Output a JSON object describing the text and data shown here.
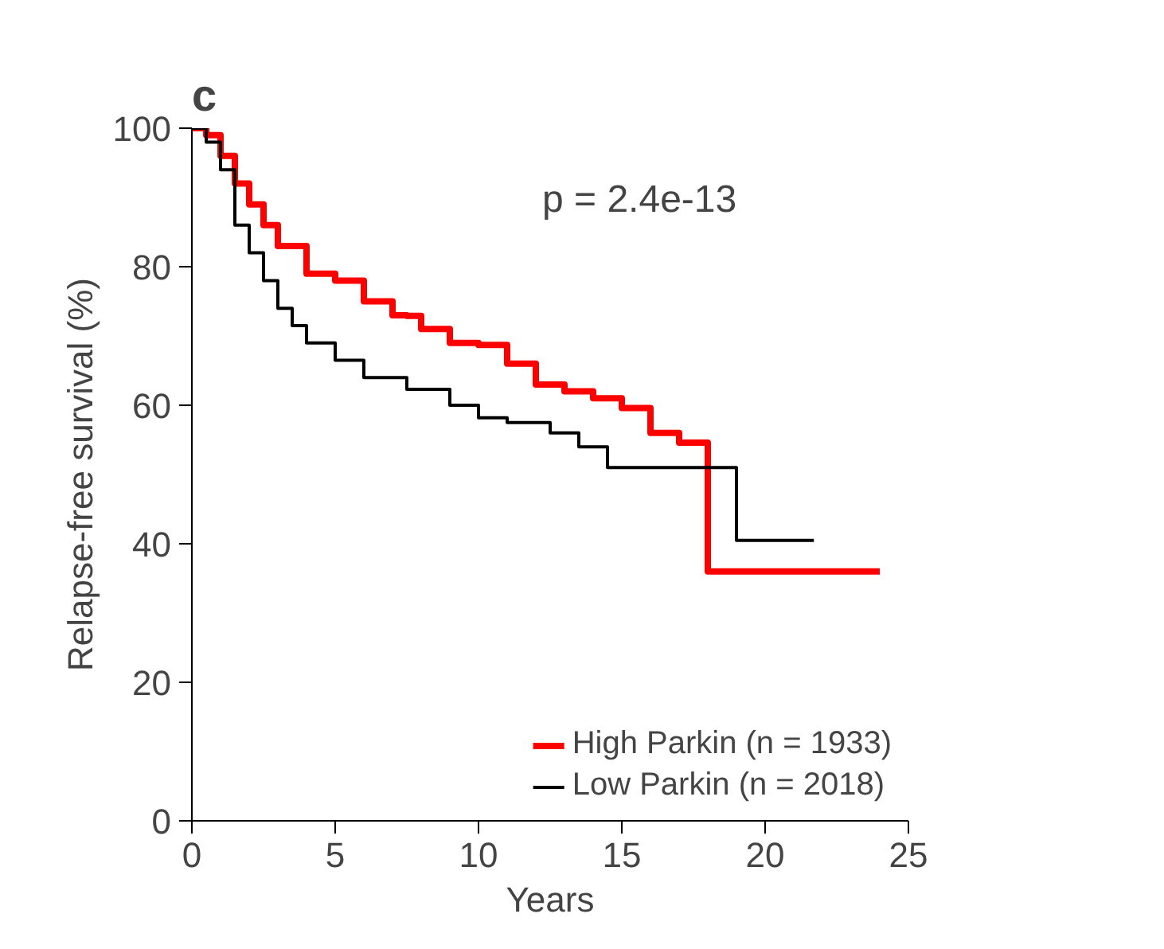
{
  "chart_data": {
    "type": "step",
    "title": "c",
    "xlabel": "Years",
    "ylabel": "Relapse-free survival (%)",
    "xlim": [
      0,
      25
    ],
    "ylim": [
      0,
      100
    ],
    "xticks": [
      0,
      5,
      10,
      15,
      20,
      25
    ],
    "yticks": [
      0,
      20,
      40,
      60,
      80,
      100
    ],
    "grid": false,
    "legend": "bottom right",
    "line_style": "solid",
    "annotations": [
      "p = 2.4e-13"
    ],
    "series": [
      {
        "name": "High Parkin (n = 1933)",
        "color": "#ff0000",
        "x": [
          0,
          0.5,
          1,
          1.5,
          2,
          2.5,
          3,
          4,
          5,
          6,
          7,
          7.5,
          8,
          9,
          10,
          11,
          12,
          13,
          14,
          15,
          16,
          17,
          18,
          18,
          24
        ],
        "values": [
          100,
          99,
          96,
          92,
          89,
          86,
          83,
          79,
          78,
          75,
          73,
          72.9,
          71,
          69,
          68.7,
          66,
          63,
          62,
          61,
          59.6,
          56,
          54.6,
          54,
          36,
          36
        ]
      },
      {
        "name": "Low Parkin (n = 2018)",
        "color": "#000000",
        "x": [
          0,
          0.5,
          1,
          1.5,
          2,
          2.5,
          3,
          3.5,
          4,
          5,
          6,
          7.5,
          9,
          10,
          11,
          12.5,
          13.5,
          14.5,
          19,
          19,
          21.7
        ],
        "values": [
          100,
          98,
          94,
          86,
          82,
          78,
          74,
          71.5,
          69,
          66.5,
          64,
          62.3,
          60,
          58.2,
          57.5,
          56,
          54,
          51,
          51,
          40.5,
          40.5
        ]
      }
    ]
  }
}
